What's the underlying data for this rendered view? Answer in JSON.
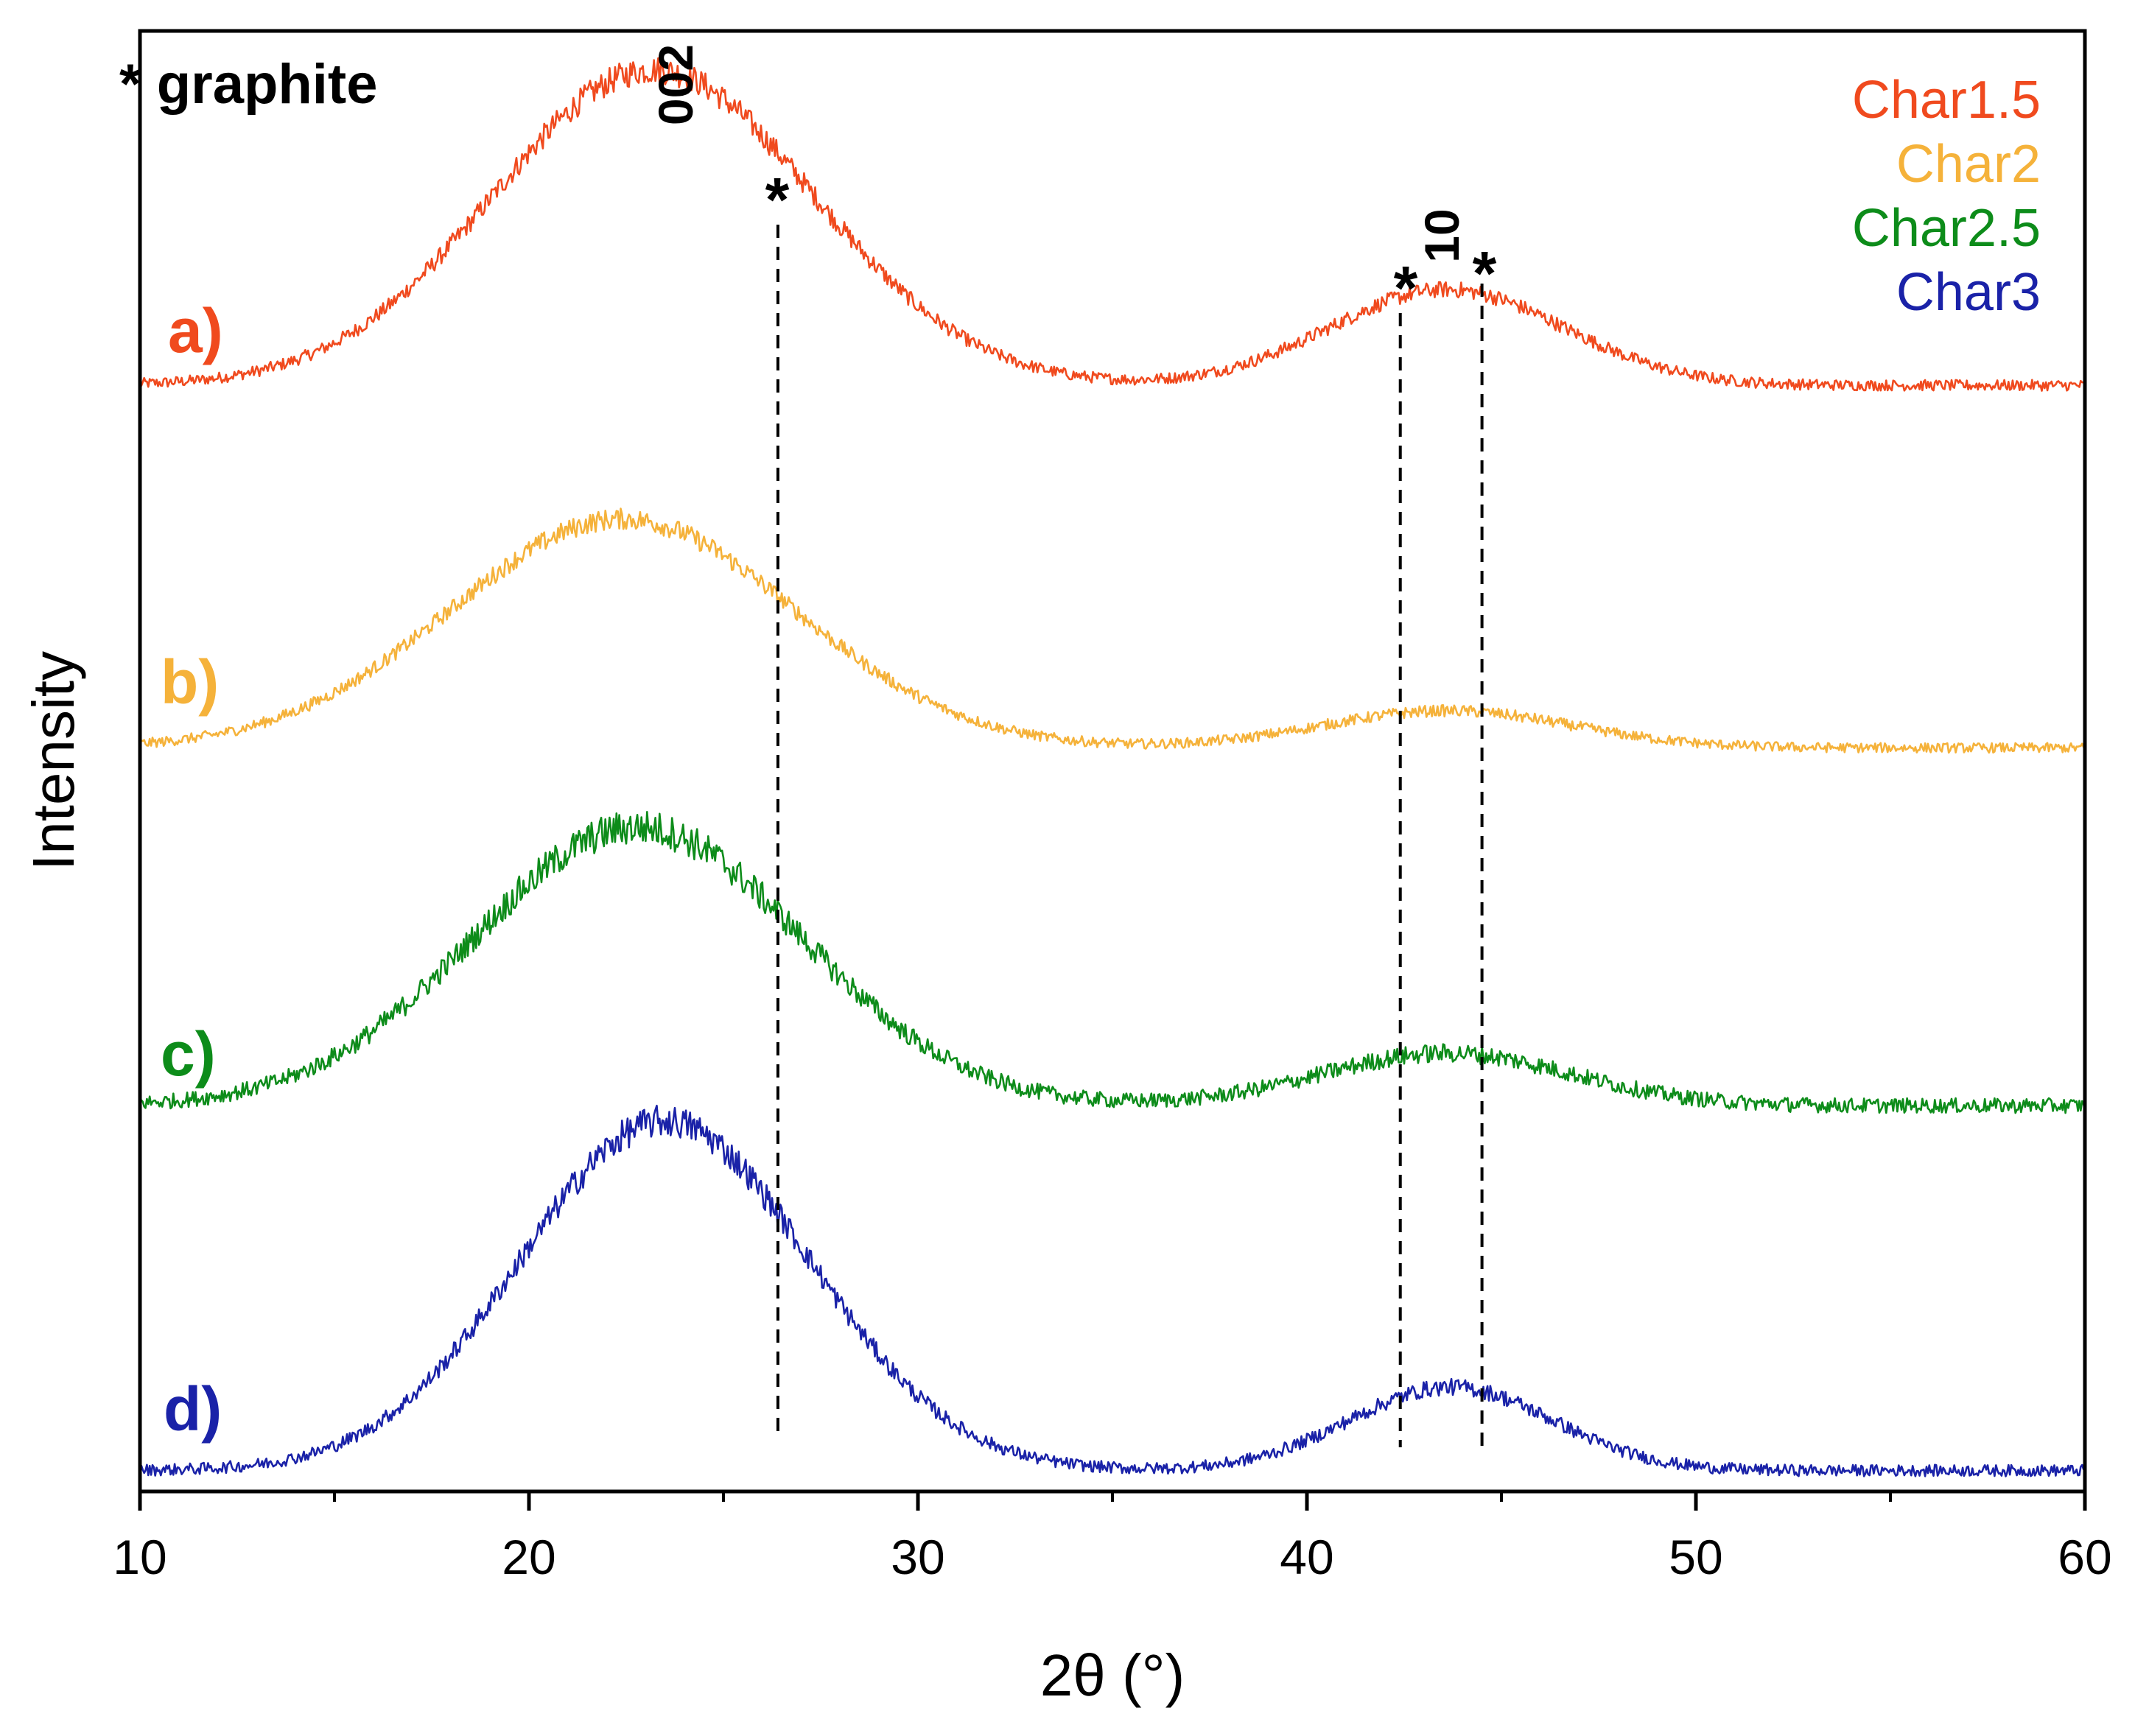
{
  "chart_data": {
    "type": "line",
    "title": "",
    "xlabel": "2θ (°)",
    "ylabel": "Intensity",
    "xlim": [
      10,
      60
    ],
    "x_ticks": [
      10,
      20,
      30,
      40,
      50,
      60
    ],
    "x_minor_ticks": [
      15,
      25,
      35,
      45,
      55
    ],
    "y_ticks_shown": false,
    "grid": false,
    "legend_position": "top-right",
    "series": [
      {
        "name": "Char1.5",
        "label": "a)",
        "color": "#f04a1e",
        "offset": 3,
        "baseline": 0.04,
        "noise": 0.055,
        "peaks": [
          {
            "hkl": "002",
            "center": 23.2,
            "height": 1.02,
            "width": 4.1
          },
          {
            "hkl": "10",
            "center": 43.6,
            "height": 0.31,
            "width": 3.0
          }
        ]
      },
      {
        "name": "Char2",
        "label": "b)",
        "color": "#f5b23a",
        "offset": 2,
        "baseline": 0.03,
        "noise": 0.05,
        "peaks": [
          {
            "hkl": "002",
            "center": 22.4,
            "height": 0.74,
            "width": 4.4
          },
          {
            "hkl": "10",
            "center": 43.6,
            "height": 0.12,
            "width": 3.2
          }
        ]
      },
      {
        "name": "Char2.5",
        "label": "c)",
        "color": "#0d8c1a",
        "offset": 1,
        "baseline": 0.04,
        "noise": 0.075,
        "peaks": [
          {
            "hkl": "002",
            "center": 22.8,
            "height": 0.9,
            "width": 4.2
          },
          {
            "hkl": "10",
            "center": 43.6,
            "height": 0.17,
            "width": 3.2
          }
        ]
      },
      {
        "name": "Char3",
        "label": "d)",
        "color": "#1a22a8",
        "offset": 0,
        "baseline": 0.02,
        "noise": 0.06,
        "peaks": [
          {
            "hkl": "002",
            "center": 23.5,
            "height": 1.13,
            "width": 3.7
          },
          {
            "hkl": "10",
            "center": 43.7,
            "height": 0.27,
            "width": 2.6
          }
        ]
      }
    ],
    "reference_lines": [
      {
        "x": 26.4,
        "marker": "*",
        "label": "graphite"
      },
      {
        "x": 42.4,
        "marker": "*",
        "label": "graphite"
      },
      {
        "x": 44.5,
        "marker": "*",
        "label": "graphite"
      }
    ],
    "annotations": {
      "graphite_legend": "* graphite",
      "peak_002": "002",
      "peak_10": "10",
      "star": "*"
    }
  }
}
